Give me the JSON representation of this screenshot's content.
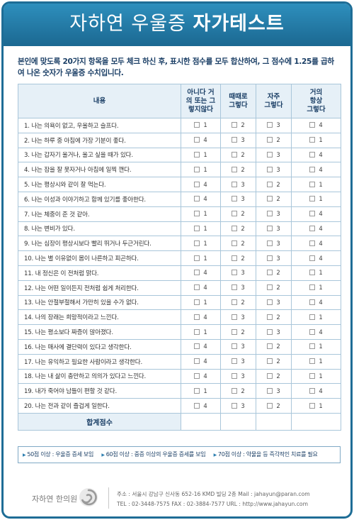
{
  "header": {
    "title_light": "자하연 우울증 ",
    "title_bold": "자가테스트"
  },
  "intro": "본인에 맞도록 20가지 항목을 모두 체크 하신 후, 표시한 점수를 모두 합산하여, 그 점수에 1.25를 곱하여 나온 숫자가 우울증 수치입니다.",
  "table": {
    "headers": [
      "내용",
      "아니다 거의 또는 그렇지않다",
      "때때로 그렇다",
      "자주 그렇다",
      "거의 항상 그렇다"
    ],
    "rows": [
      {
        "q": "1. 나는 의욕이 없고, 우울하고 슬프다.",
        "s": [
          "1",
          "2",
          "3",
          "4"
        ]
      },
      {
        "q": "2. 나는 하루 중 아침에 가장 기분이 좋다.",
        "s": [
          "4",
          "3",
          "2",
          "1"
        ]
      },
      {
        "q": "3. 나는 갑자기 울거나, 울고 싶을 때가 있다.",
        "s": [
          "1",
          "2",
          "3",
          "4"
        ]
      },
      {
        "q": "4. 나는 잠을 잘 못자거나 아침에 일찍 깬다.",
        "s": [
          "1",
          "2",
          "3",
          "4"
        ]
      },
      {
        "q": "5. 나는 평상시와 같이 잘 먹는다.",
        "s": [
          "4",
          "3",
          "2",
          "1"
        ]
      },
      {
        "q": "6. 나는 이성과 이야기하고 함께 있기를 좋아한다.",
        "s": [
          "4",
          "3",
          "2",
          "1"
        ]
      },
      {
        "q": "7. 나는 체중이 준 것 같아.",
        "s": [
          "1",
          "2",
          "3",
          "4"
        ]
      },
      {
        "q": "8. 나는 변비가 있다.",
        "s": [
          "1",
          "2",
          "3",
          "4"
        ]
      },
      {
        "q": "9. 나는 심장이 평상시보다 빨리 뛰거나 두근거린다.",
        "s": [
          "1",
          "2",
          "3",
          "4"
        ]
      },
      {
        "q": "10. 나는 별 이유없이 몸이 나른하고 피곤하다.",
        "s": [
          "1",
          "2",
          "3",
          "4"
        ]
      },
      {
        "q": "11. 내 정신은 이 전처럼 맑다.",
        "s": [
          "4",
          "3",
          "2",
          "1"
        ]
      },
      {
        "q": "12. 나는 어떤 일이든지 전처럼 쉽게 처리한다.",
        "s": [
          "4",
          "3",
          "2",
          "1"
        ]
      },
      {
        "q": "13. 나는 안절부절해서 가만히 있을 수가 없다.",
        "s": [
          "1",
          "2",
          "3",
          "4"
        ]
      },
      {
        "q": "14. 나의 장래는 희망적이라고 느낀다.",
        "s": [
          "4",
          "3",
          "2",
          "1"
        ]
      },
      {
        "q": "15. 나는 평소보다 짜증이 많아졌다.",
        "s": [
          "1",
          "2",
          "3",
          "4"
        ]
      },
      {
        "q": "16. 나는 매사에 결단력이 있다고 생각한다.",
        "s": [
          "4",
          "3",
          "2",
          "1"
        ]
      },
      {
        "q": "17. 나는 유익하고 필요한 사람이라고 생각한다.",
        "s": [
          "4",
          "3",
          "2",
          "1"
        ]
      },
      {
        "q": "18. 나는 내 삶이 충만하고 의의가 있다고 느낀다.",
        "s": [
          "4",
          "3",
          "2",
          "1"
        ]
      },
      {
        "q": "19. 내가 죽어야 남들이 편할 것 같다.",
        "s": [
          "1",
          "2",
          "3",
          "4"
        ]
      },
      {
        "q": "20. 나는 전과 같이 즐겁게 일한다.",
        "s": [
          "4",
          "3",
          "2",
          "1"
        ]
      }
    ],
    "total_label": "합계점수"
  },
  "legend": [
    "50점 이상 : 우울증 증세 보임",
    "60점 이상 : 중증 이상의 우울증 증세를 보임",
    "70점 이상 : 약물을 등 즉각적인 치료를 필요"
  ],
  "footer": {
    "name": "자하연 한의원",
    "address_line": "주소 : 서울시 강남구 신사동 652-16 KMD 빌딩 2층    Mail : jahayun@paran.com",
    "contact_line": "TEL : 02-3448-7575    FAX : 02-3884-7577    URL : http://www.jahayun.com"
  },
  "colors": {
    "brand": "#1e6d96",
    "header_bg": "#2e8fbd",
    "table_header_bg": "#e6f0f7",
    "text_dark": "#1b3f66"
  },
  "icons": {
    "logo": "swirl-logo-icon",
    "legend_bullet": "triangle-bullet-icon",
    "checkbox": "checkbox-icon"
  }
}
